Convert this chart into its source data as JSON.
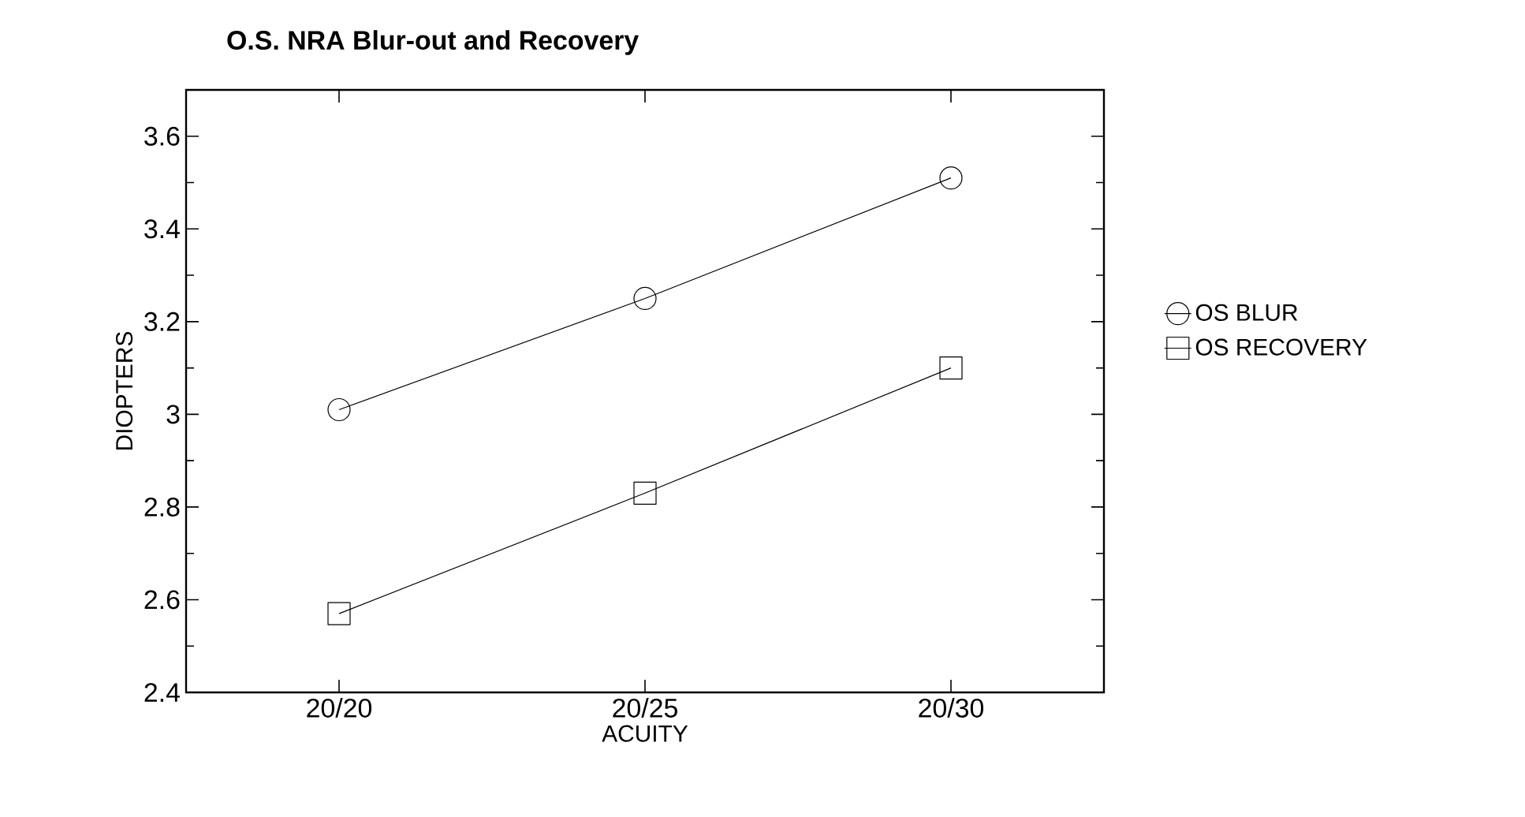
{
  "chart_data": {
    "type": "line",
    "title": "O.S. NRA Blur-out and Recovery",
    "xlabel": "ACUITY",
    "ylabel": "DIOPTERS",
    "categories": [
      "20/20",
      "20/25",
      "20/30"
    ],
    "series": [
      {
        "name": "OS BLUR",
        "color": "#000000",
        "marker": "circle",
        "values": [
          3.01,
          3.25,
          3.51
        ]
      },
      {
        "name": "OS RECOVERY",
        "color": "#000000",
        "marker": "square",
        "values": [
          2.57,
          2.83,
          3.1
        ]
      }
    ],
    "ylim": [
      2.4,
      3.7
    ],
    "yticks": [
      2.4,
      2.6,
      2.8,
      3,
      3.2,
      3.4,
      3.6
    ],
    "legend": "right",
    "grid": false,
    "line_style": "solid"
  }
}
